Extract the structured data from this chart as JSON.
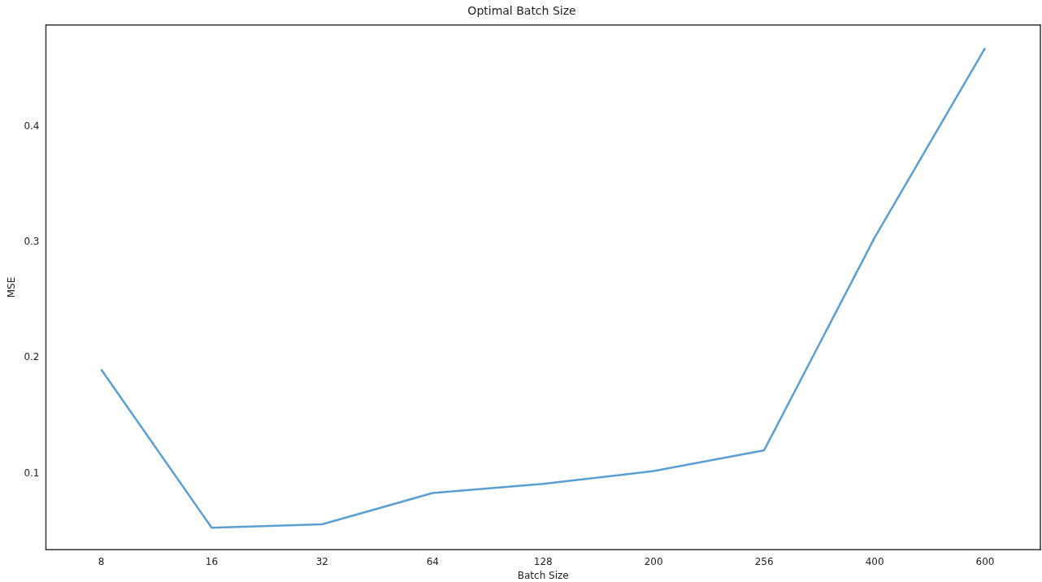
{
  "chart_data": {
    "type": "line",
    "title": "Optimal Batch Size",
    "xlabel": "Batch Size",
    "ylabel": "MSE",
    "categories": [
      "8",
      "16",
      "32",
      "64",
      "128",
      "200",
      "256",
      "400",
      "600"
    ],
    "series": [
      {
        "color": "#5b9fd2",
        "values": [
          0.19,
          0.053,
          0.056,
          0.083,
          0.091,
          0.102,
          0.12,
          0.304,
          0.468
        ]
      }
    ],
    "ylim": [
      0.034,
      0.488
    ],
    "yticks": [
      {
        "value": 0.1,
        "label": "0.1"
      },
      {
        "value": 0.2,
        "label": "0.2"
      },
      {
        "value": 0.3,
        "label": "0.3"
      },
      {
        "value": 0.4,
        "label": "0.4"
      }
    ],
    "grid": false,
    "legend": false,
    "marker": "none",
    "line_style": "solid"
  }
}
